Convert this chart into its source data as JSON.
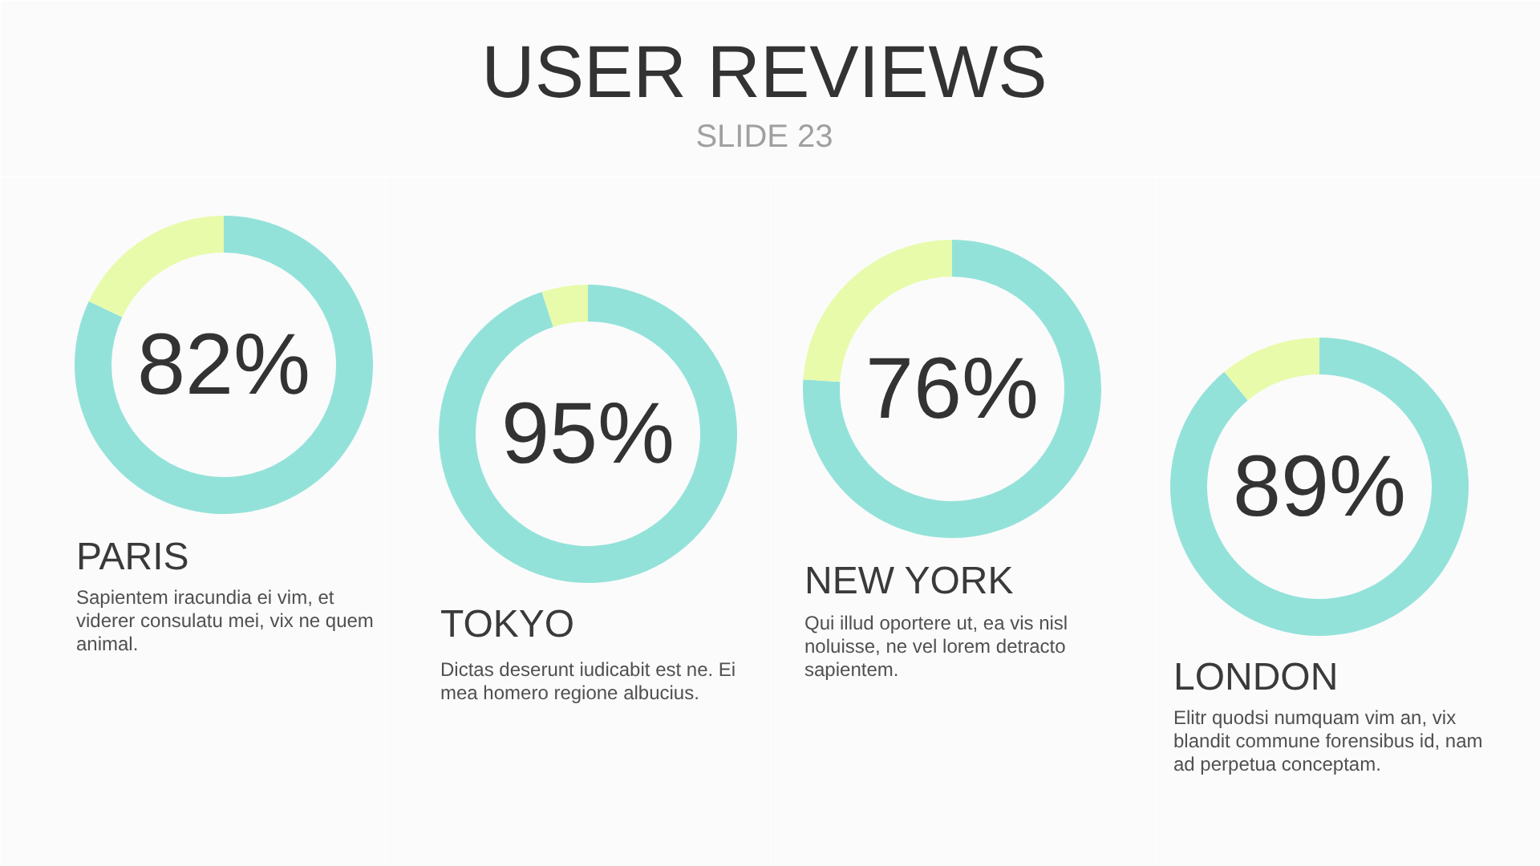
{
  "chart_data": [
    {
      "type": "other",
      "title": "USER REVIEWS",
      "subtitle": "SLIDE 23"
    },
    {
      "type": "donut",
      "title": "PARIS",
      "categories": [
        null,
        null
      ],
      "values": [
        82,
        18
      ],
      "colors": [
        "#93e2da",
        "#e8fbab"
      ],
      "value_labels": [
        "82%",
        null
      ],
      "annotations": [
        "Sapientem iracundia ei vim, et viderer consulatu mei, vix ne quem animal."
      ]
    },
    {
      "type": "donut",
      "title": "TOKYO",
      "categories": [
        null,
        null
      ],
      "values": [
        95,
        5
      ],
      "colors": [
        "#93e2da",
        "#e8fbab"
      ],
      "value_labels": [
        "95%",
        null
      ],
      "annotations": [
        "Dictas deserunt iudicabit est ne. Ei mea homero regione albucius."
      ]
    },
    {
      "type": "donut",
      "title": "NEW YORK",
      "categories": [
        null,
        null
      ],
      "values": [
        76,
        24
      ],
      "colors": [
        "#93e2da",
        "#e8fbab"
      ],
      "value_labels": [
        "76%",
        null
      ],
      "annotations": [
        "Qui illud oportere ut, ea vis nisl noluisse, ne vel lorem detracto sapientem."
      ]
    },
    {
      "type": "donut",
      "title": "LONDON",
      "categories": [
        null,
        null
      ],
      "values": [
        89,
        11
      ],
      "colors": [
        "#93e2da",
        "#e8fbab"
      ],
      "value_labels": [
        "89%",
        null
      ],
      "annotations": [
        "Elitr quodsi numquam vim an, vix blandit commune forensibus id, nam ad perpetua conceptam."
      ]
    }
  ]
}
